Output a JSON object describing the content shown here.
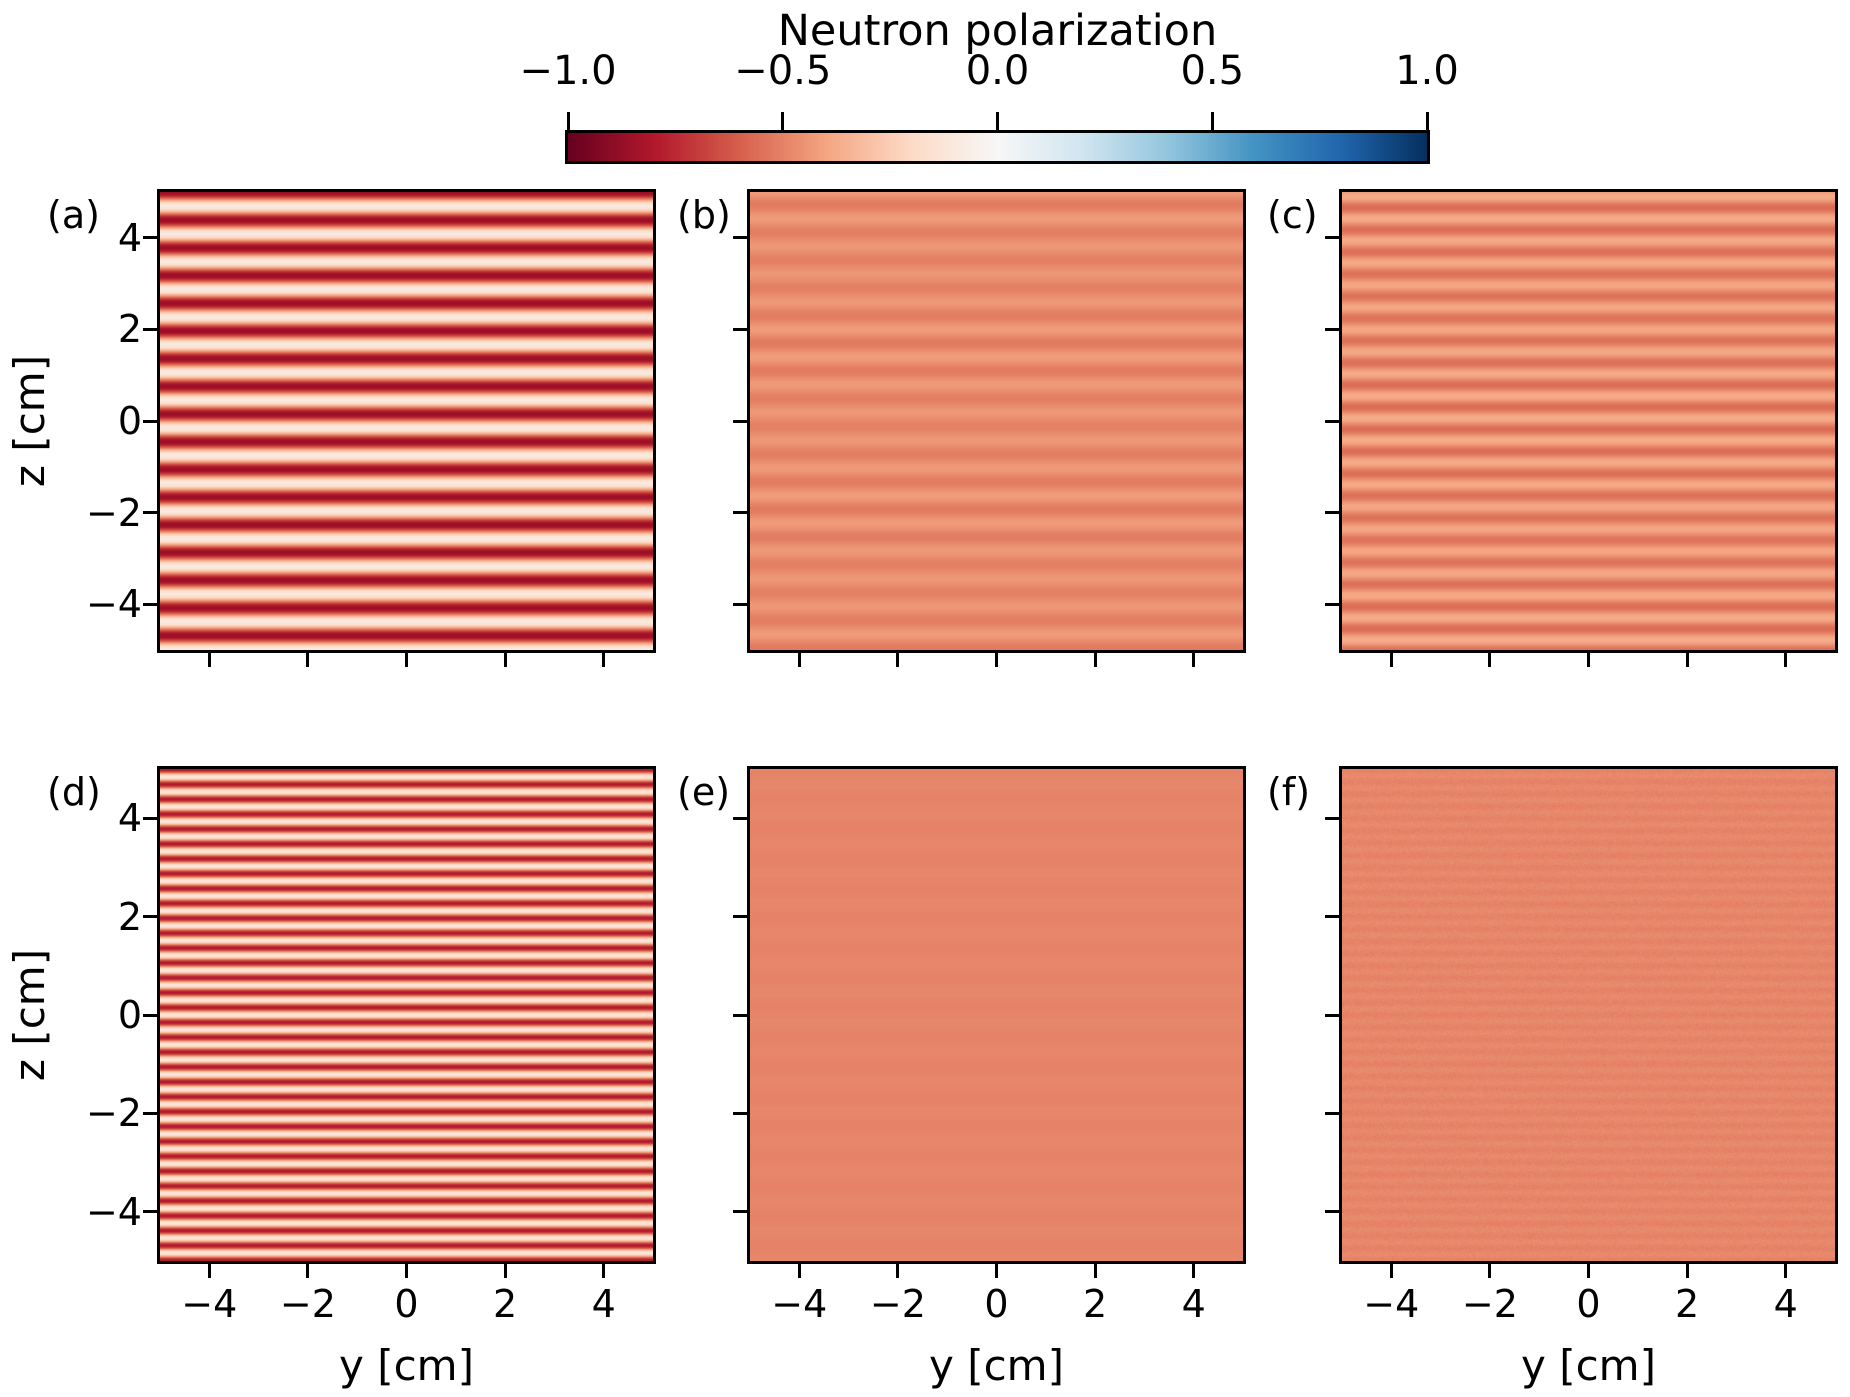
{
  "figure": {
    "background": "#ffffff"
  },
  "colorbar": {
    "title": "Neutron polarization",
    "tick_labels": [
      "−1.0",
      "−0.5",
      "0.0",
      "0.5",
      "1.0"
    ],
    "tick_values": [
      -1.0,
      -0.5,
      0.0,
      0.5,
      1.0
    ],
    "range": [
      -1.0,
      1.0
    ],
    "orientation": "horizontal",
    "tick_side": "top"
  },
  "axes": {
    "x_label": "y [cm]",
    "y_label": "z [cm]",
    "x_tick_labels": [
      "−4",
      "−2",
      "0",
      "2",
      "4"
    ],
    "x_tick_values": [
      -4,
      -2,
      0,
      2,
      4
    ],
    "y_tick_labels": [
      "4",
      "2",
      "0",
      "−2",
      "−4"
    ],
    "y_tick_values": [
      4,
      2,
      0,
      -2,
      -4
    ],
    "xlim": [
      -5,
      5
    ],
    "ylim": [
      -5,
      5
    ]
  },
  "panel_letters": [
    "(a)",
    "(b)",
    "(c)",
    "(d)",
    "(e)",
    "(f)"
  ],
  "chart_data": {
    "type": "heatmap",
    "title": "Neutron polarization",
    "value_name": "Neutron polarization",
    "xlabel": "y [cm]",
    "ylabel": "z [cm]",
    "xlim": [
      -5,
      5
    ],
    "ylim": [
      -5,
      5
    ],
    "xticks": [
      -4,
      -2,
      0,
      2,
      4
    ],
    "yticks": [
      4,
      2,
      0,
      -2,
      -4
    ],
    "grid": false,
    "colormap": {
      "name": "RdBu",
      "range": [
        -1.0,
        1.0
      ],
      "stops": [
        "#67001f",
        "#b2182b",
        "#d6604d",
        "#f4a582",
        "#fddbc7",
        "#f7f7f7",
        "#d1e5f0",
        "#92c5de",
        "#4393c3",
        "#2166ac",
        "#053061"
      ]
    },
    "layout": "2 rows x 3 columns, shared axes, horizontal stripe patterns uniform along y",
    "panels": [
      {
        "label": "(a)",
        "row": 0,
        "col": 0,
        "description": "strong horizontal stripes alternating dark red (P≈−0.87) and cream (P≈−0.10)",
        "mean_polarization": -0.48,
        "amplitude": 0.385,
        "stripe_period_cm": 0.606,
        "phase_rad": 0.0,
        "beat_period_cm": null,
        "beat_depth": 0.0,
        "noise": 0.0,
        "approx_stripe_count": 16.5
      },
      {
        "label": "(b)",
        "row": 0,
        "col": 1,
        "description": "faint salmon stripes, weak contrast around P≈−0.48",
        "mean_polarization": -0.475,
        "amplitude": 0.05,
        "stripe_period_cm": 0.606,
        "phase_rad": 3.5,
        "beat_period_cm": 3.4,
        "beat_depth": 0.35,
        "noise": 0.0,
        "approx_stripe_count": 16.5
      },
      {
        "label": "(c)",
        "row": 0,
        "col": 2,
        "description": "moderate finer salmon stripes around P≈−0.47",
        "mean_polarization": -0.47,
        "amplitude": 0.095,
        "stripe_period_cm": 0.485,
        "phase_rad": 2.0,
        "beat_period_cm": 5.0,
        "beat_depth": 0.2,
        "noise": 0.0,
        "approx_stripe_count": 20.5
      },
      {
        "label": "(d)",
        "row": 1,
        "col": 0,
        "description": "fine strong stripes, double frequency of (a), dark red to cream",
        "mean_polarization": -0.46,
        "amplitude": 0.34,
        "stripe_period_cm": 0.303,
        "phase_rad": 0.0,
        "beat_period_cm": null,
        "beat_depth": 0.0,
        "noise": 0.0,
        "approx_stripe_count": 33
      },
      {
        "label": "(e)",
        "row": 1,
        "col": 1,
        "description": "uniform salmon field, fully averaged polarization P≈−0.50",
        "mean_polarization": -0.495,
        "amplitude": 0.006,
        "stripe_period_cm": 0.606,
        "phase_rad": 0.0,
        "beat_period_cm": null,
        "beat_depth": 0.0,
        "noise": 0.0,
        "approx_stripe_count": 0
      },
      {
        "label": "(f)",
        "row": 1,
        "col": 2,
        "description": "uniform salmon field with faint pixel noise, P≈−0.49",
        "mean_polarization": -0.49,
        "amplitude": 0.012,
        "stripe_period_cm": 0.25,
        "phase_rad": 0.0,
        "beat_period_cm": null,
        "beat_depth": 0.0,
        "noise": 0.018,
        "approx_stripe_count": 0
      }
    ]
  }
}
